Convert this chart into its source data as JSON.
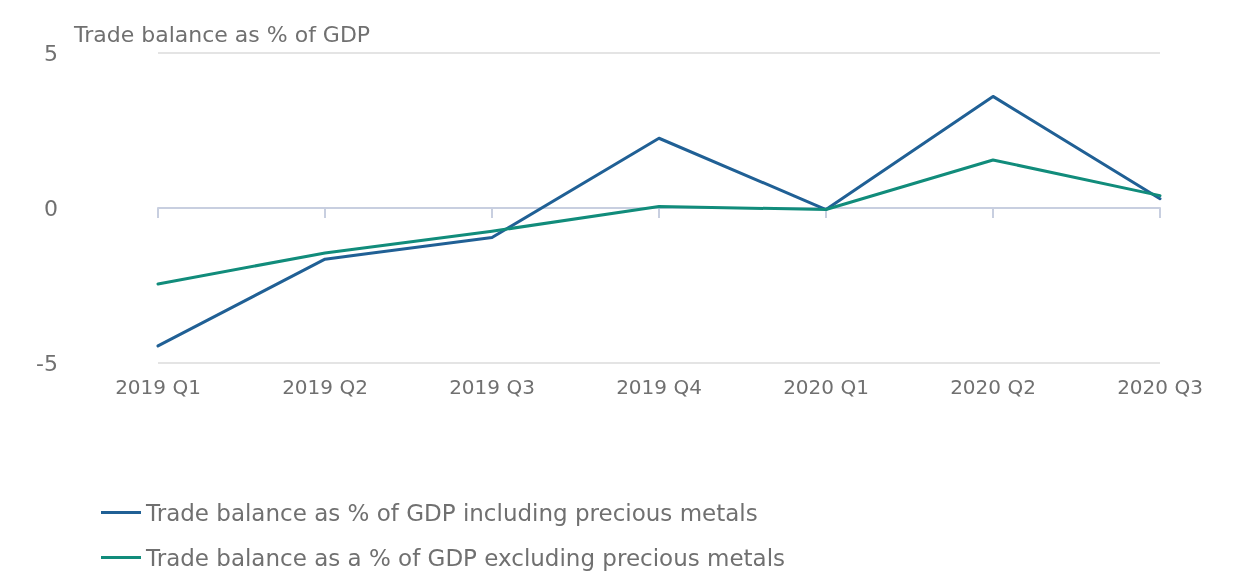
{
  "chart_data": {
    "type": "line",
    "ylabel": "Trade balance as % of GDP",
    "categories": [
      "2019 Q1",
      "2019 Q2",
      "2019 Q3",
      "2019 Q4",
      "2020 Q1",
      "2020 Q2",
      "2020 Q3"
    ],
    "series": [
      {
        "name": "Trade balance as % of GDP including precious metals",
        "color": "#206095",
        "values": [
          -4.45,
          -1.65,
          -0.95,
          2.25,
          -0.05,
          3.6,
          0.3
        ]
      },
      {
        "name": "Trade balance as a % of GDP excluding precious metals",
        "color": "#118c7b",
        "values": [
          -2.45,
          -1.45,
          -0.75,
          0.05,
          -0.05,
          1.55,
          0.4
        ]
      }
    ],
    "ylim": [
      -5,
      5
    ],
    "yticks": [
      -5,
      0,
      5
    ],
    "grid": "y",
    "legend": "bottom",
    "marker": "none",
    "line_style": "solid"
  }
}
